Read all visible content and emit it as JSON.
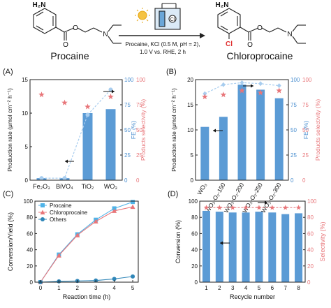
{
  "scheme": {
    "reactant_label": "Procaine",
    "product_label": "Chloroprocaine",
    "conditions_line1": "Procaine, KCl (0.5 M, pH = 2),",
    "conditions_line2": "1.0 V vs. RHE, 2 h",
    "amine_group": "H₂N",
    "chlorine": "Cl",
    "nitrogen": "N",
    "oxygen": "O"
  },
  "chart_data": [
    {
      "panel": "(A)",
      "type": "bar",
      "categories": [
        "Fe₂O₃",
        "BiVO₄",
        "TiO₂",
        "WO₃"
      ],
      "ylabel": "Production rate (μmol cm⁻² h⁻¹)",
      "ylabel_right_1": "FE (%)",
      "ylabel_right_2": "Products selectivity (%)",
      "ylim": [
        0,
        15
      ],
      "yticks": [
        0,
        5,
        10,
        15
      ],
      "y2lim": [
        0,
        100
      ],
      "y2ticks": [
        0,
        25,
        50,
        75,
        100
      ],
      "series": [
        {
          "metric": "production_rate",
          "axis": "left",
          "style": "bar",
          "color": "#5b9bd5",
          "values": [
            0.3,
            0.3,
            10.0,
            10.6
          ]
        },
        {
          "metric": "FE",
          "axis": "right",
          "style": "dashed-line-circle",
          "color": "#a8cdef",
          "values": [
            2,
            2,
            65,
            90
          ]
        },
        {
          "metric": "selectivity",
          "axis": "right",
          "style": "star",
          "color": "#e8767a",
          "values": [
            85,
            77,
            73,
            83
          ]
        }
      ]
    },
    {
      "panel": "(B)",
      "type": "bar",
      "categories": [
        "WO₃",
        "WO₃-O₂-150",
        "WO₃-O₂-200",
        "WO₃-O₂-250",
        "WO₃-O₂-300"
      ],
      "ylabel": "Production rate (μmol cm⁻² h⁻¹)",
      "ylabel_right_1": "FE (%)",
      "ylabel_right_2": "Products selectivity (%)",
      "ylim": [
        0,
        20
      ],
      "yticks": [
        0,
        5,
        10,
        15,
        20
      ],
      "y2lim": [
        0,
        100
      ],
      "y2ticks": [
        0,
        25,
        50,
        75,
        100
      ],
      "series": [
        {
          "metric": "production_rate",
          "axis": "left",
          "style": "bar",
          "color": "#5b9bd5",
          "values": [
            10.6,
            12.6,
            19.0,
            18.0,
            16.3
          ]
        },
        {
          "metric": "FE",
          "axis": "right",
          "style": "dashed-line-diamond",
          "color": "#a8cdef",
          "values": [
            86,
            95,
            97,
            96,
            94
          ]
        },
        {
          "metric": "selectivity",
          "axis": "right",
          "style": "star",
          "color": "#e8767a",
          "values": [
            83,
            85,
            89,
            87,
            89
          ]
        }
      ]
    },
    {
      "panel": "(C)",
      "type": "line",
      "xlabel": "Reaction time (h)",
      "ylabel": "Conversion/Yield (%)",
      "x": [
        0,
        1,
        2,
        3,
        4,
        5
      ],
      "xlim": [
        -0.3,
        5.3
      ],
      "ylim": [
        0,
        100
      ],
      "yticks": [
        0,
        20,
        40,
        60,
        80,
        100
      ],
      "legend": "top-left",
      "series": [
        {
          "name": "Procaine",
          "marker": "square",
          "color": "#4fb3e8",
          "values": [
            0,
            34,
            59,
            77,
            91,
            99
          ]
        },
        {
          "name": "Chloroprocaine",
          "marker": "triangle",
          "color": "#e8767a",
          "values": [
            0,
            33,
            58,
            75,
            88,
            93
          ]
        },
        {
          "name": "Others",
          "marker": "circle",
          "color": "#2f86b8",
          "values": [
            0,
            1,
            1.5,
            2,
            4,
            7
          ]
        }
      ]
    },
    {
      "panel": "(D)",
      "type": "bar",
      "xlabel": "Recycle number",
      "ylabel": "Conversion (%)",
      "ylabel_right": "Selectivity (%)",
      "categories": [
        "1",
        "2",
        "3",
        "4",
        "5",
        "6",
        "7",
        "8"
      ],
      "ylim": [
        0,
        100
      ],
      "yticks": [
        0,
        20,
        40,
        60,
        80,
        100
      ],
      "y2lim": [
        0,
        100
      ],
      "y2ticks": [
        0,
        20,
        40,
        60,
        80,
        100
      ],
      "series": [
        {
          "metric": "conversion",
          "axis": "left",
          "style": "bar",
          "color": "#5b9bd5",
          "values": [
            88,
            87,
            86,
            86,
            87,
            86,
            84,
            85
          ]
        },
        {
          "metric": "selectivity",
          "axis": "right",
          "style": "dashed-line-star",
          "color": "#e8767a",
          "values": [
            92,
            92,
            92,
            92,
            92,
            92,
            92,
            92
          ]
        }
      ]
    }
  ]
}
